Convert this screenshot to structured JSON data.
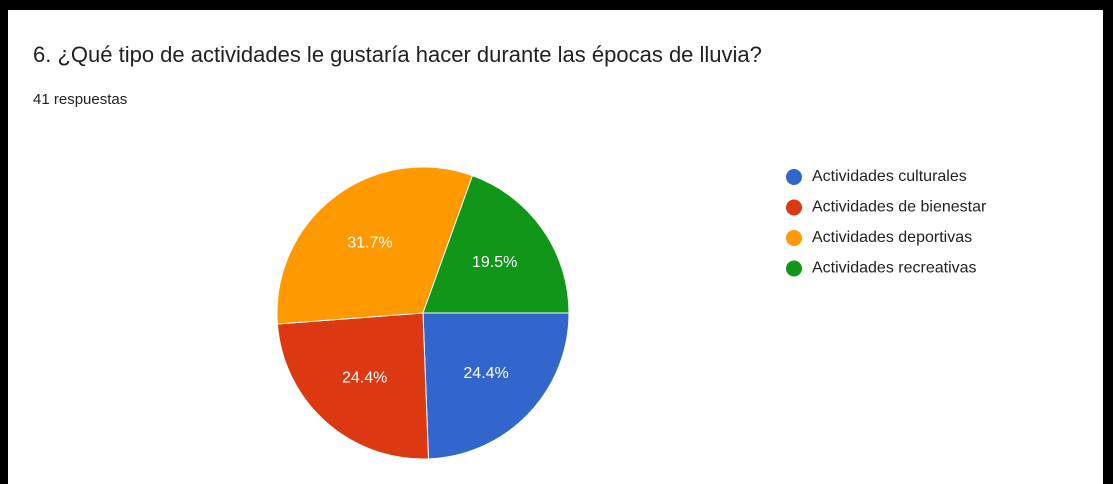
{
  "chart_data": {
    "type": "pie",
    "title": "6. ¿Qué tipo de actividades le gustaría hacer durante las épocas de lluvia?",
    "subtitle": "41 respuestas",
    "categories": [
      "Actividades culturales",
      "Actividades de bienestar",
      "Actividades deportivas",
      "Actividades recreativas"
    ],
    "values": [
      24.4,
      24.4,
      31.7,
      19.5
    ],
    "value_labels": [
      "24.4%",
      "24.4%",
      "31.7%",
      "19.5%"
    ],
    "colors": [
      "#3366cc",
      "#dc3912",
      "#ff9900",
      "#109618"
    ],
    "start_angle": 90,
    "legend": "right"
  }
}
